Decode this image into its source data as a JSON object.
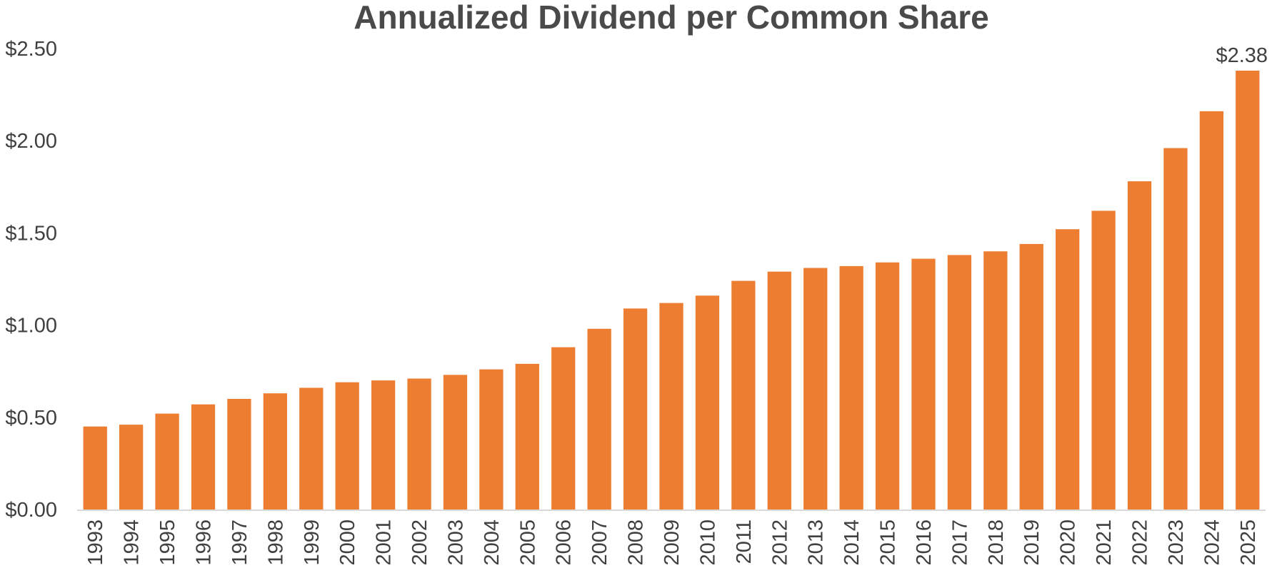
{
  "chart_data": {
    "type": "bar",
    "title": "Annualized Dividend per Common Share",
    "xlabel": "",
    "ylabel": "",
    "ylim": [
      0,
      2.5
    ],
    "yticks": [
      {
        "value": 0,
        "label": "$0.00"
      },
      {
        "value": 0.5,
        "label": "$0.50"
      },
      {
        "value": 1.0,
        "label": "$1.00"
      },
      {
        "value": 1.5,
        "label": "$1.50"
      },
      {
        "value": 2.0,
        "label": "$2.00"
      },
      {
        "value": 2.5,
        "label": "$2.50"
      }
    ],
    "grid": false,
    "legend": "none",
    "bar_color": "#ED7D31",
    "axis_color": "#D9D9D9",
    "categories": [
      "1993",
      "1994",
      "1995",
      "1996",
      "1997",
      "1998",
      "1999",
      "2000",
      "2001",
      "2002",
      "2003",
      "2004",
      "2005",
      "2006",
      "2007",
      "2008",
      "2009",
      "2010",
      "2011",
      "2012",
      "2013",
      "2014",
      "2015",
      "2016",
      "2017",
      "2018",
      "2019",
      "2020",
      "2021",
      "2022",
      "2023",
      "2024",
      "2025"
    ],
    "values": [
      0.45,
      0.46,
      0.52,
      0.57,
      0.6,
      0.63,
      0.66,
      0.69,
      0.7,
      0.71,
      0.73,
      0.76,
      0.79,
      0.88,
      0.98,
      1.09,
      1.12,
      1.16,
      1.24,
      1.29,
      1.31,
      1.32,
      1.34,
      1.36,
      1.38,
      1.4,
      1.44,
      1.52,
      1.62,
      1.78,
      1.96,
      2.16,
      2.38
    ],
    "data_labels": [
      {
        "category": "2025",
        "text": "$2.38"
      }
    ]
  }
}
